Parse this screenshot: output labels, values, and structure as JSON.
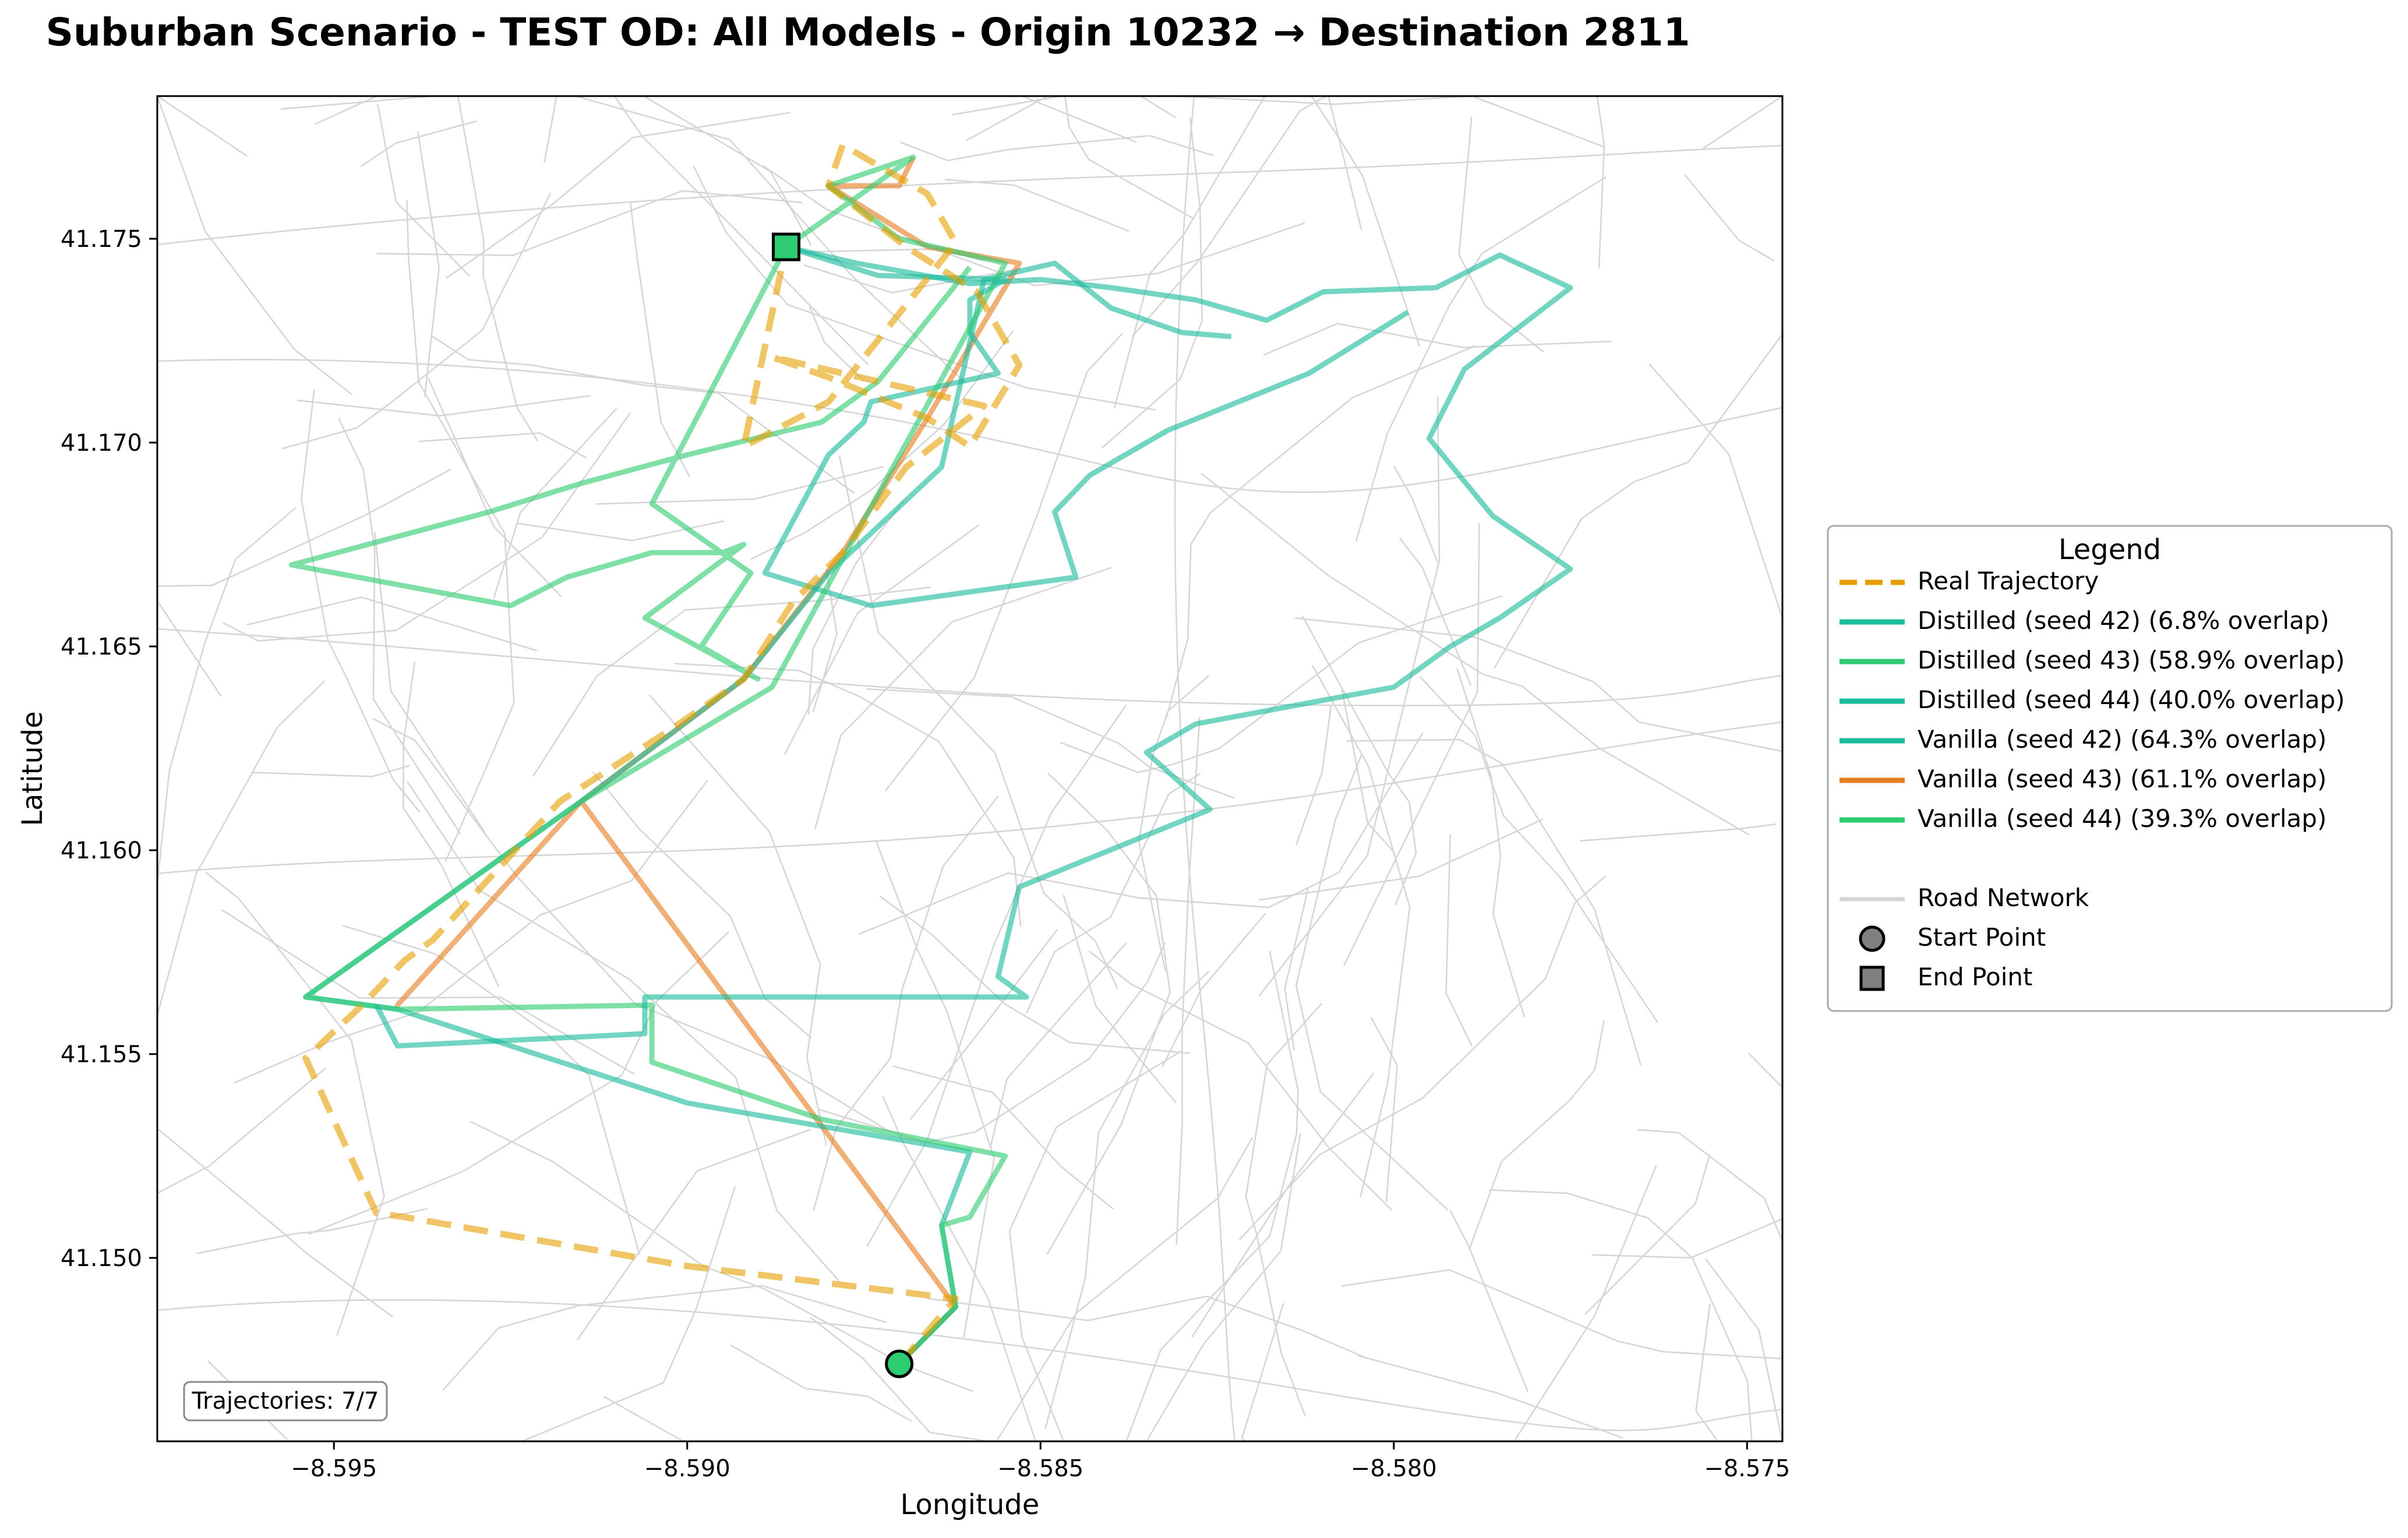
{
  "chart_data": {
    "type": "line",
    "title": "Suburban Scenario - TEST OD: All Models - Origin 10232 → Destination 2811",
    "xlabel": "Longitude",
    "ylabel": "Latitude",
    "xlim": [
      -8.5975,
      -8.5745
    ],
    "ylim": [
      41.1455,
      41.1785
    ],
    "xticks": [
      -8.595,
      -8.59,
      -8.585,
      -8.58,
      -8.575
    ],
    "xtick_labels": [
      "−8.595",
      "−8.590",
      "−8.585",
      "−8.580",
      "−8.575"
    ],
    "yticks": [
      41.15,
      41.155,
      41.16,
      41.165,
      41.17,
      41.175
    ],
    "ytick_labels": [
      "41.150",
      "41.155",
      "41.160",
      "41.165",
      "41.170",
      "41.175"
    ],
    "grid": false,
    "legend_title": "Legend",
    "legend_position": "right",
    "annotation": "Trajectories: 7/7",
    "start_point": {
      "label": "Start Point",
      "x": -8.587,
      "y": 41.1474
    },
    "end_point": {
      "label": "End Point",
      "x": -8.5886,
      "y": 41.1748
    },
    "road_network_label": "Road Network",
    "series": [
      {
        "name": "Real Trajectory",
        "color": "#e69f00",
        "style": "dashed",
        "x": [
          -8.587,
          -8.5863,
          -8.5862,
          -8.59,
          -8.594,
          -8.5944,
          -8.5954,
          -8.5946,
          -8.594,
          -8.5936,
          -8.5918,
          -8.5902,
          -8.5892,
          -8.5885,
          -8.5878,
          -8.5869,
          -8.5858,
          -8.5888,
          -8.588,
          -8.5866,
          -8.586,
          -8.5853,
          -8.5859,
          -8.5869,
          -8.588,
          -8.5878,
          -8.5866,
          -8.5862,
          -8.588,
          -8.5892,
          -8.5886
        ],
        "y": [
          41.1474,
          41.1488,
          41.149,
          41.1498,
          41.151,
          41.1511,
          41.1549,
          41.1562,
          41.1573,
          41.1578,
          41.1612,
          41.163,
          41.1642,
          41.1661,
          41.1673,
          41.1694,
          41.1709,
          41.1721,
          41.1716,
          41.1706,
          41.1699,
          41.1719,
          41.1737,
          41.1748,
          41.1763,
          41.1773,
          41.1761,
          41.1749,
          41.171,
          41.1699,
          41.1748
        ]
      },
      {
        "name": "Distilled (seed 42) (6.8% overlap)",
        "color": "#1abc9c",
        "style": "solid",
        "x": [
          -8.5886,
          -8.5876,
          -8.586,
          -8.585,
          -8.584,
          -8.5828,
          -8.5818,
          -8.581,
          -8.5794,
          -8.5785,
          -8.5775,
          -8.579,
          -8.5795,
          -8.5786,
          -8.5775,
          -8.5785,
          -8.5792,
          -8.58,
          -8.5828,
          -8.5835,
          -8.5826,
          -8.5853,
          -8.5856,
          -8.5852,
          -8.5906,
          -8.5906,
          -8.5941,
          -8.5944
        ],
        "y": [
          41.1748,
          41.1744,
          41.1739,
          41.174,
          41.1738,
          41.1735,
          41.173,
          41.1737,
          41.1738,
          41.1746,
          41.1738,
          41.1718,
          41.1701,
          41.1682,
          41.1669,
          41.1657,
          41.165,
          41.164,
          41.1631,
          41.1624,
          41.161,
          41.1591,
          41.1569,
          41.1564,
          41.1564,
          41.1555,
          41.1552,
          41.1562
        ]
      },
      {
        "name": "Distilled (seed 43) (58.9% overlap)",
        "color": "#2ecc71",
        "style": "solid",
        "x": [
          -8.587,
          -8.5862,
          -8.5864,
          -8.586,
          -8.5858,
          -8.5855,
          -8.5881,
          -8.5905,
          -8.5905,
          -8.5941,
          -8.5954,
          -8.5915,
          -8.5888,
          -8.5855,
          -8.587,
          -8.588,
          -8.5868,
          -8.5886
        ],
        "y": [
          41.1474,
          41.1488,
          41.1508,
          41.151,
          41.1516,
          41.1525,
          41.1534,
          41.1548,
          41.1562,
          41.1561,
          41.1564,
          41.1612,
          41.164,
          41.1744,
          41.175,
          41.1763,
          41.177,
          41.1748
        ]
      },
      {
        "name": "Distilled (seed 44) (40.0% overlap)",
        "color": "#1abc9c",
        "style": "solid",
        "x": [
          -8.5886,
          -8.5873,
          -8.5855,
          -8.586,
          -8.586,
          -8.5856,
          -8.5874,
          -8.5875,
          -8.588,
          -8.5889,
          -8.5874,
          -8.5845,
          -8.5848,
          -8.5843,
          -8.5832,
          -8.5812,
          -8.5798
        ],
        "y": [
          41.1748,
          41.1741,
          41.174,
          41.1735,
          41.1727,
          41.1717,
          41.171,
          41.1705,
          41.1697,
          41.1668,
          41.166,
          41.1667,
          41.1683,
          41.1692,
          41.1703,
          41.1717,
          41.1732
        ]
      },
      {
        "name": "Vanilla (seed 42) (64.3% overlap)",
        "color": "#1abc9c",
        "style": "solid",
        "x": [
          -8.587,
          -8.5862,
          -8.5864,
          -8.586,
          -8.59,
          -8.5941,
          -8.5954,
          -8.5915,
          -8.5892,
          -8.588,
          -8.5864,
          -8.5858,
          -8.5848,
          -8.584,
          -8.5835,
          -8.583,
          -8.5823
        ],
        "y": [
          41.1474,
          41.1488,
          41.1508,
          41.1526,
          41.1538,
          41.1561,
          41.1564,
          41.1612,
          41.1642,
          41.1668,
          41.1694,
          41.174,
          41.1744,
          41.1733,
          41.173,
          41.1727,
          41.1726
        ]
      },
      {
        "name": "Vanilla (seed 43) (61.1% overlap)",
        "color": "#e67e22",
        "style": "solid",
        "x": [
          -8.587,
          -8.5862,
          -8.5915,
          -8.5941,
          -8.5915,
          -8.5892,
          -8.5878,
          -8.5866,
          -8.5853,
          -8.5866,
          -8.588,
          -8.587,
          -8.5868
        ],
        "y": [
          41.1474,
          41.1488,
          41.1612,
          41.1562,
          41.1612,
          41.1642,
          41.1673,
          41.1706,
          41.1744,
          41.1748,
          41.1763,
          41.1763,
          41.177
        ]
      },
      {
        "name": "Vanilla (seed 44) (39.3% overlap)",
        "color": "#2ecc71",
        "style": "solid",
        "x": [
          -8.586,
          -8.5873,
          -8.5881,
          -8.59,
          -8.5915,
          -8.5928,
          -8.5956,
          -8.5925,
          -8.5917,
          -8.5905,
          -8.5895,
          -8.5892,
          -8.5906,
          -8.589,
          -8.5898,
          -8.5891,
          -8.5905,
          -8.5886
        ],
        "y": [
          41.1743,
          41.1715,
          41.1705,
          41.1697,
          41.169,
          41.1683,
          41.167,
          41.166,
          41.1667,
          41.1673,
          41.1673,
          41.1675,
          41.1657,
          41.1642,
          41.165,
          41.1668,
          41.1685,
          41.1748
        ]
      }
    ]
  }
}
